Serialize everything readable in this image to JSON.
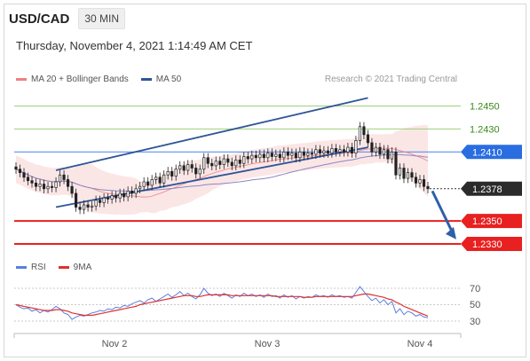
{
  "header": {
    "symbol": "USD/CAD",
    "timeframe": "30 MIN",
    "datetime": "Thursday, November 4, 2021 1:14:49 AM CET"
  },
  "legend": {
    "ma20_label": "MA 20 + Bollinger Bands",
    "ma20_color": "#f08080",
    "ma50_label": "MA 50",
    "ma50_color": "#2f5597",
    "copyright": "Research © 2021 Trading Central"
  },
  "price_levels": [
    {
      "value": "1.2450",
      "kind": "resistance",
      "color": "#9fd07a",
      "label_color": "#3a8a1a"
    },
    {
      "value": "1.2430",
      "kind": "resistance",
      "color": "#9fd07a",
      "label_color": "#3a8a1a"
    },
    {
      "value": "1.2410",
      "kind": "pivot",
      "color": "#5b8ff0",
      "badge_color": "#2a6de0"
    },
    {
      "value": "1.2378",
      "kind": "last",
      "badge_color": "#2b2b2b"
    },
    {
      "value": "1.2350",
      "kind": "target",
      "color": "#e82020",
      "badge_color": "#e82020"
    },
    {
      "value": "1.2330",
      "kind": "target",
      "color": "#e82020",
      "badge_color": "#e82020"
    }
  ],
  "rsi_legend": {
    "rsi_label": "RSI",
    "rsi_color": "#5b7fdf",
    "ma_label": "9MA",
    "ma_color": "#e03030"
  },
  "rsi_axis": [
    "70",
    "50",
    "30"
  ],
  "x_axis": [
    "Nov 2",
    "Nov 3",
    "Nov 4"
  ],
  "chart_data": {
    "type": "candlestick",
    "price_range": [
      1.232,
      1.2465
    ],
    "close_series": [
      1.2395,
      1.2392,
      1.2388,
      1.2385,
      1.2383,
      1.238,
      1.2382,
      1.2378,
      1.238,
      1.2379,
      1.2384,
      1.239,
      1.2386,
      1.238,
      1.2374,
      1.2362,
      1.236,
      1.2364,
      1.2362,
      1.2363,
      1.2368,
      1.2366,
      1.237,
      1.2369,
      1.2372,
      1.237,
      1.2374,
      1.2371,
      1.2376,
      1.2374,
      1.2378,
      1.238,
      1.2384,
      1.2381,
      1.2386,
      1.2388,
      1.2383,
      1.239,
      1.2393,
      1.2389,
      1.2395,
      1.2398,
      1.2394,
      1.2399,
      1.2396,
      1.2391,
      1.2395,
      1.2405,
      1.24,
      1.2398,
      1.2402,
      1.2399,
      1.2404,
      1.2401,
      1.2398,
      1.2403,
      1.24,
      1.2406,
      1.2404,
      1.2407,
      1.2405,
      1.2408,
      1.2405,
      1.2409,
      1.2406,
      1.2408,
      1.2405,
      1.241,
      1.2407,
      1.2409,
      1.2405,
      1.241,
      1.2407,
      1.2409,
      1.2408,
      1.2412,
      1.2409,
      1.2411,
      1.2409,
      1.2413,
      1.241,
      1.2412,
      1.241,
      1.2414,
      1.2409,
      1.242,
      1.2432,
      1.2425,
      1.2418,
      1.241,
      1.2414,
      1.2408,
      1.2412,
      1.2404,
      1.241,
      1.239,
      1.2396,
      1.2387,
      1.2392,
      1.2388,
      1.2383,
      1.2386,
      1.238,
      1.2378
    ],
    "rsi_series": [
      50,
      47,
      45,
      46,
      42,
      44,
      40,
      43,
      41,
      44,
      48,
      45,
      40,
      38,
      32,
      35,
      37,
      36,
      38,
      40,
      41,
      43,
      42,
      45,
      44,
      47,
      46,
      49,
      48,
      51,
      53,
      55,
      52,
      56,
      58,
      54,
      57,
      60,
      63,
      59,
      62,
      66,
      61,
      64,
      60,
      57,
      62,
      70,
      64,
      61,
      63,
      60,
      64,
      61,
      58,
      62,
      60,
      64,
      61,
      63,
      60,
      62,
      59,
      63,
      60,
      61,
      58,
      62,
      59,
      61,
      57,
      60,
      58,
      60,
      59,
      62,
      60,
      61,
      59,
      62,
      60,
      61,
      59,
      60,
      58,
      65,
      72,
      66,
      60,
      55,
      58,
      52,
      56,
      50,
      54,
      40,
      45,
      38,
      42,
      40,
      36,
      38,
      35,
      34
    ],
    "rsi_ma_series": [
      50,
      49,
      48,
      47,
      46,
      45,
      44,
      43,
      43,
      43,
      44,
      44,
      43,
      42,
      40,
      39,
      38,
      37,
      37,
      37,
      38,
      39,
      40,
      41,
      42,
      43,
      44,
      45,
      46,
      47,
      48,
      50,
      51,
      52,
      53,
      54,
      55,
      56,
      57,
      58,
      59,
      60,
      61,
      61,
      61,
      60,
      60,
      61,
      62,
      62,
      62,
      62,
      62,
      62,
      61,
      61,
      61,
      61,
      61,
      61,
      61,
      61,
      61,
      61,
      61,
      60,
      60,
      60,
      60,
      60,
      60,
      60,
      59,
      59,
      59,
      60,
      60,
      60,
      60,
      60,
      60,
      60,
      60,
      60,
      60,
      61,
      62,
      63,
      63,
      62,
      61,
      60,
      59,
      57,
      56,
      53,
      51,
      48,
      46,
      44,
      42,
      40,
      38,
      36
    ]
  }
}
